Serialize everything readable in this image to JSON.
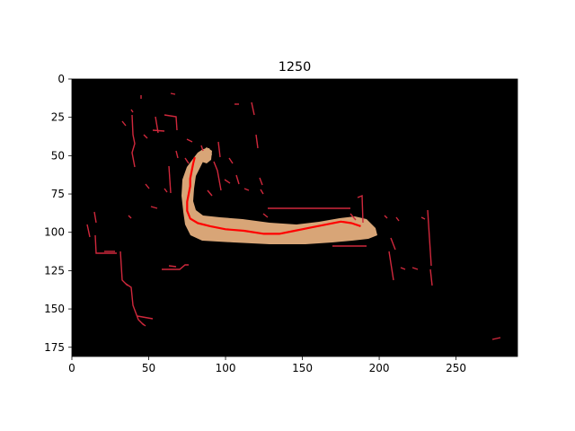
{
  "title": "1250",
  "image": {
    "x_range": [
      0,
      290
    ],
    "y_range": [
      0,
      181
    ],
    "background_color": "#000000",
    "body_color": "#d8a577",
    "edge_color": "#d0283c",
    "trace_color": "#ff0000"
  },
  "x_ticks": [
    0,
    50,
    100,
    150,
    200,
    250
  ],
  "y_ticks": [
    0,
    25,
    50,
    75,
    100,
    125,
    150,
    175
  ],
  "midline": [
    [
      80,
      51
    ],
    [
      79,
      55
    ],
    [
      78,
      60
    ],
    [
      77,
      65
    ],
    [
      77,
      70
    ],
    [
      76,
      75
    ],
    [
      75,
      80
    ],
    [
      75,
      86
    ],
    [
      77,
      91
    ],
    [
      82,
      94
    ],
    [
      90,
      96
    ],
    [
      100,
      98
    ],
    [
      112,
      99
    ],
    [
      125,
      101
    ],
    [
      135,
      101
    ],
    [
      145,
      99
    ],
    [
      155,
      97
    ],
    [
      165,
      95
    ],
    [
      175,
      93
    ],
    [
      182,
      94
    ],
    [
      188,
      96
    ]
  ]
}
